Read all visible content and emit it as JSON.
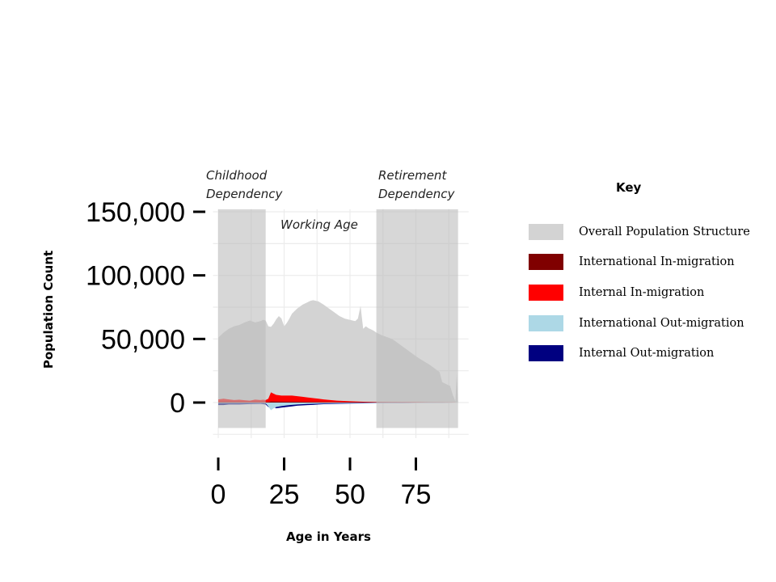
{
  "chart_data": {
    "type": "area",
    "xlabel": "Age in Years",
    "ylabel": "Population Count",
    "xlim": [
      -2,
      95
    ],
    "ylim": [
      -28000,
      152000
    ],
    "x_ticks": [
      0,
      25,
      50,
      75
    ],
    "y_ticks": [
      0,
      50000,
      100000,
      150000
    ],
    "y_tick_labels": [
      "0",
      "50,000",
      "100,000",
      "150,000"
    ],
    "grid": true,
    "annotations": [
      {
        "text_lines": [
          "Childhood",
          "Dependency"
        ]
      },
      {
        "text_lines": [
          "Working Age"
        ]
      },
      {
        "text_lines": [
          "Retirement",
          "Dependency"
        ]
      }
    ],
    "shaded_bands": [
      {
        "name": "Childhood Dependency",
        "x_range": [
          0,
          18
        ],
        "y_range": [
          -20000,
          152000
        ]
      },
      {
        "name": "Retirement Dependency",
        "x_range": [
          60,
          91
        ],
        "y_range": [
          -20000,
          152000
        ]
      }
    ],
    "legend": {
      "title": "Key",
      "placement": "right",
      "entries": [
        {
          "label": "Overall Population Structure",
          "color": "#d3d3d3"
        },
        {
          "label": "International In-migration",
          "color": "#800000"
        },
        {
          "label": "Internal In-migration",
          "color": "#ff0000"
        },
        {
          "label": "International Out-migration",
          "color": "#add8e6"
        },
        {
          "label": "Internal Out-migration",
          "color": "#000080"
        }
      ]
    },
    "series": [
      {
        "name": "Overall Population Structure",
        "color": "#d3d3d3",
        "x": [
          0,
          2,
          4,
          6,
          8,
          10,
          12,
          14,
          16,
          17,
          18,
          19,
          20,
          21,
          22,
          23,
          24,
          25,
          26,
          27,
          28,
          30,
          32,
          34,
          35,
          36,
          38,
          40,
          42,
          44,
          46,
          48,
          50,
          52,
          53,
          54,
          55,
          56,
          57,
          58,
          59,
          60,
          62,
          64,
          66,
          68,
          70,
          72,
          74,
          76,
          78,
          80,
          82,
          84,
          85,
          86,
          88,
          89,
          90,
          90.5,
          91
        ],
        "y": [
          51000,
          55000,
          58000,
          60000,
          61000,
          63000,
          64500,
          63000,
          64000,
          65000,
          64500,
          60000,
          59500,
          62000,
          65500,
          68000,
          66000,
          60000,
          62500,
          66000,
          70000,
          74000,
          77000,
          79000,
          80000,
          80500,
          79500,
          77000,
          74000,
          71000,
          68000,
          66000,
          65000,
          64000,
          66000,
          76000,
          58000,
          60000,
          58500,
          57500,
          56500,
          55000,
          53000,
          51500,
          50000,
          47000,
          44000,
          41000,
          38000,
          35000,
          32500,
          30000,
          27000,
          24000,
          16000,
          15000,
          13000,
          6000,
          1000,
          23000,
          0
        ]
      },
      {
        "name": "Internal In-migration",
        "color": "#ff0000",
        "x": [
          0,
          2,
          4,
          6,
          8,
          10,
          12,
          14,
          16,
          17,
          18,
          19,
          20,
          21,
          22,
          24,
          26,
          28,
          30,
          32,
          34,
          36,
          38,
          40,
          45,
          50,
          55,
          60,
          65,
          70,
          75,
          80,
          85,
          90
        ],
        "y": [
          2500,
          3000,
          2500,
          2000,
          2200,
          1800,
          1500,
          2300,
          2000,
          2200,
          2000,
          3000,
          8000,
          7000,
          6000,
          5500,
          5500,
          5500,
          5000,
          4500,
          4000,
          3500,
          3000,
          2500,
          1500,
          1000,
          600,
          400,
          300,
          200,
          200,
          100,
          80,
          50
        ]
      },
      {
        "name": "International In-migration",
        "color": "#800000",
        "x": [
          0,
          10,
          18,
          19,
          20,
          22,
          25,
          30,
          35,
          40,
          50,
          60,
          70,
          80,
          90
        ],
        "y": [
          400,
          350,
          300,
          400,
          900,
          800,
          700,
          600,
          500,
          400,
          250,
          150,
          100,
          50,
          20
        ]
      },
      {
        "name": "Internal Out-migration",
        "color": "#000080",
        "x": [
          0,
          2,
          4,
          8,
          12,
          16,
          18,
          19,
          20,
          21,
          22,
          24,
          26,
          28,
          30,
          32,
          34,
          36,
          38,
          40,
          45,
          50,
          55,
          60,
          65,
          70,
          75,
          80,
          85,
          90
        ],
        "y": [
          -2000,
          -2000,
          -1500,
          -1500,
          -1200,
          -1000,
          -1500,
          -3500,
          -4000,
          -3500,
          -4500,
          -4000,
          -3500,
          -3000,
          -2500,
          -2200,
          -2000,
          -1800,
          -1500,
          -1300,
          -1000,
          -800,
          -600,
          -400,
          -300,
          -200,
          -100,
          -80,
          -50,
          -30
        ]
      },
      {
        "name": "International Out-migration",
        "color": "#add8e6",
        "x": [
          0,
          10,
          17,
          18,
          19,
          20,
          21,
          22,
          24,
          26,
          28,
          30,
          35,
          40,
          50,
          60,
          70,
          80,
          90
        ],
        "y": [
          -500,
          -500,
          -500,
          -600,
          -3000,
          -6000,
          -4500,
          -3500,
          -2800,
          -2200,
          -1800,
          -1500,
          -1000,
          -700,
          -400,
          -200,
          -100,
          -50,
          -20
        ]
      }
    ]
  }
}
